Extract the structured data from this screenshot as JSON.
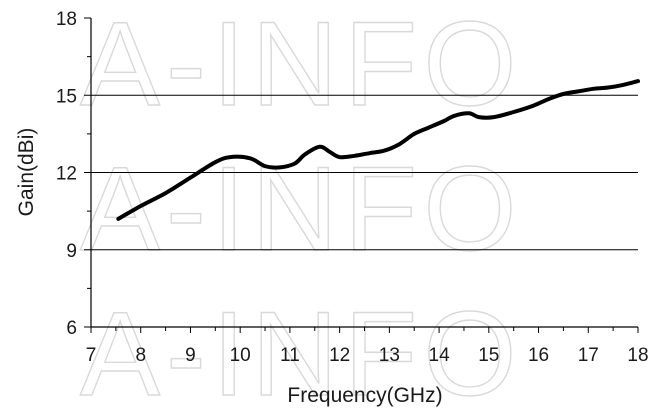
{
  "watermark": "A-INFO",
  "chart_data": {
    "type": "line",
    "title": "",
    "xlabel": "Frequency(GHz)",
    "ylabel": "Gain(dBi)",
    "xlim": [
      7,
      18
    ],
    "ylim": [
      6,
      18
    ],
    "x_ticks": [
      7,
      8,
      9,
      10,
      11,
      12,
      13,
      14,
      15,
      16,
      17,
      18
    ],
    "y_ticks": [
      6,
      9,
      12,
      15,
      18
    ],
    "grid": "horizontal major gridlines",
    "legend": "none",
    "series": [
      {
        "color": "#000000",
        "x": [
          7.55,
          8.0,
          8.5,
          9.0,
          9.5,
          9.8,
          10.2,
          10.5,
          10.8,
          11.1,
          11.3,
          11.6,
          11.8,
          12.0,
          12.3,
          12.6,
          12.9,
          13.2,
          13.5,
          13.8,
          14.1,
          14.3,
          14.6,
          14.8,
          15.1,
          15.5,
          15.9,
          16.2,
          16.5,
          16.8,
          17.1,
          17.4,
          17.7,
          18.0
        ],
        "y": [
          10.2,
          10.7,
          11.2,
          11.8,
          12.4,
          12.6,
          12.55,
          12.25,
          12.2,
          12.35,
          12.7,
          13.0,
          12.8,
          12.6,
          12.65,
          12.75,
          12.85,
          13.1,
          13.5,
          13.75,
          14.0,
          14.2,
          14.3,
          14.15,
          14.15,
          14.35,
          14.6,
          14.85,
          15.05,
          15.15,
          15.25,
          15.3,
          15.4,
          15.55
        ]
      }
    ]
  }
}
